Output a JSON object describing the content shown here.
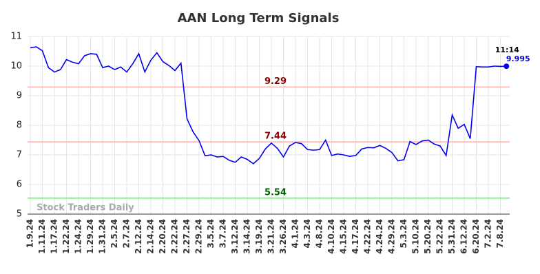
{
  "chart_data": {
    "type": "line",
    "title": "AAN Long Term Signals",
    "watermark": "Stock Traders Daily",
    "categories": [
      "1.9.24",
      null,
      "1.11.24",
      null,
      "1.17.24",
      null,
      "1.22.24",
      null,
      "1.24.24",
      null,
      "1.29.24",
      null,
      "1.31.24",
      null,
      "2.5.24",
      null,
      "2.7.24",
      null,
      "2.12.24",
      null,
      "2.14.24",
      null,
      "2.20.24",
      null,
      "2.22.24",
      null,
      "2.27.24",
      null,
      "2.29.24",
      null,
      "3.5.24",
      null,
      "3.7.24",
      null,
      "3.12.24",
      null,
      "3.14.24",
      null,
      "3.19.24",
      null,
      "3.21.24",
      null,
      "3.26.24",
      null,
      "4.1.24",
      null,
      "4.3.24",
      null,
      "4.8.24",
      null,
      "4.10.24",
      null,
      "4.15.24",
      null,
      "4.17.24",
      null,
      "4.22.24",
      null,
      "4.24.24",
      null,
      "4.29.24",
      null,
      "5.3.24",
      null,
      "5.10.24",
      null,
      "5.20.24",
      null,
      "5.22.24",
      null,
      "5.31.24",
      null,
      "6.12.24",
      null,
      "6.20.24",
      null,
      "7.2.24",
      null,
      "7.8.24",
      null
    ],
    "series": [
      {
        "name": "AAN",
        "color": "#0000ee",
        "values": [
          10.62,
          10.65,
          10.52,
          9.95,
          9.8,
          9.88,
          10.22,
          10.13,
          10.08,
          10.35,
          10.42,
          10.4,
          9.95,
          10.0,
          9.88,
          9.97,
          9.8,
          10.08,
          10.42,
          9.8,
          10.2,
          10.45,
          10.15,
          10.02,
          9.85,
          10.1,
          8.22,
          7.78,
          7.48,
          6.97,
          7.0,
          6.93,
          6.95,
          6.82,
          6.75,
          6.93,
          6.85,
          6.7,
          6.88,
          7.2,
          7.4,
          7.22,
          6.93,
          7.3,
          7.42,
          7.38,
          7.18,
          7.16,
          7.18,
          7.5,
          6.98,
          7.03,
          7.0,
          6.95,
          6.98,
          7.2,
          7.25,
          7.24,
          7.32,
          7.22,
          7.08,
          6.8,
          6.84,
          7.45,
          7.35,
          7.47,
          7.5,
          7.37,
          7.3,
          6.98,
          8.35,
          7.9,
          8.03,
          7.55,
          9.98,
          9.97,
          9.97,
          10.0,
          9.99,
          9.995
        ]
      }
    ],
    "last_time": "11:14",
    "hlines": [
      {
        "value": 9.29,
        "color": "#ffc0c0",
        "label_color": "#8b0000"
      },
      {
        "value": 7.44,
        "color": "#ffc0c0",
        "label_color": "#8b0000"
      },
      {
        "value": 5.54,
        "color": "#90ee90",
        "label_color": "#006400"
      }
    ],
    "ylim": [
      5,
      11
    ],
    "yticks": [
      5,
      6,
      7,
      8,
      9,
      10,
      11
    ],
    "grid": true
  }
}
